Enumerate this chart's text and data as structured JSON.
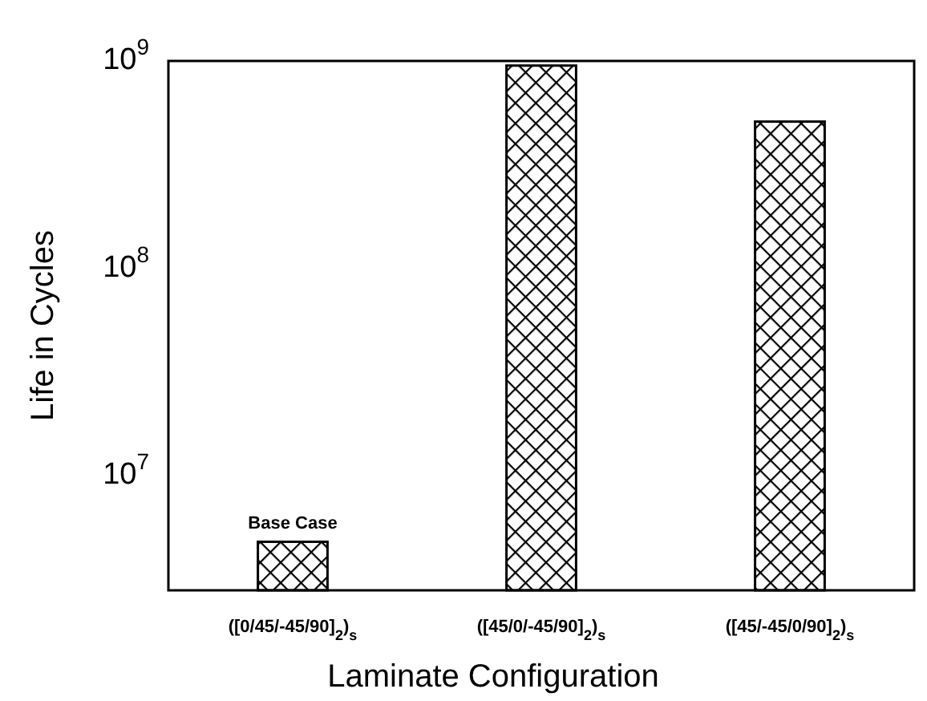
{
  "chart_data": {
    "type": "bar",
    "xlabel": "Laminate Configuration",
    "ylabel": "Life in Cycles",
    "categories": [
      "([0/45/-45/90]$_{2}$)$_{s}$",
      "([45/0/-45/90]$_{2}$)$_{s}$",
      "([45/-45/0/90]$_{2}$)$_{s}$"
    ],
    "values": [
      4800000,
      950000000,
      510000000
    ],
    "color": "#000000",
    "log": true,
    "ylim": [
      2800000,
      1000000000
    ],
    "yticks": [
      {
        "value": 10000000,
        "label": "10$^{7}$"
      },
      {
        "value": 100000000,
        "label": "10$^{8}$"
      },
      {
        "value": 1000000000,
        "label": "10$^{9}$"
      }
    ],
    "annotations": [
      {
        "text": "Base Case",
        "x": "([0/45/-45/90]$_{2}$)$_{s}$",
        "y": 4800000
      }
    ],
    "grid": false
  }
}
